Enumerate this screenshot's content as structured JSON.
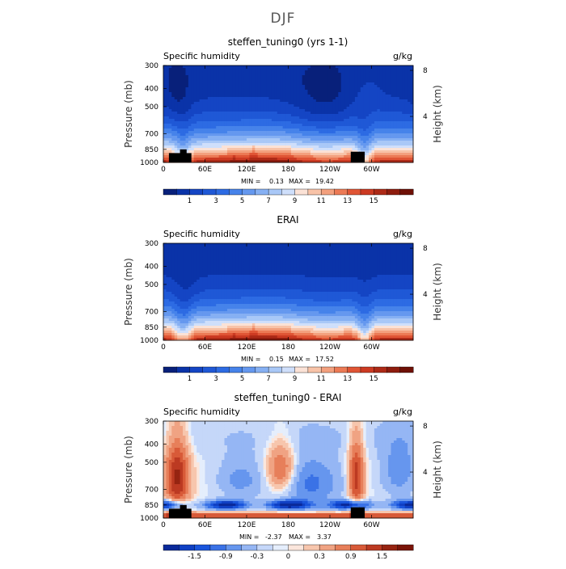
{
  "figure": {
    "title": "DJF"
  },
  "colors": {
    "absolute": [
      "#08207a",
      "#0a33a8",
      "#1445c4",
      "#1f58d6",
      "#2d6be3",
      "#4683ea",
      "#6598ef",
      "#86b0f3",
      "#a9c8f7",
      "#cfdffb",
      "#fbe2d6",
      "#f8c3a8",
      "#f3a07e",
      "#ec7a55",
      "#e05535",
      "#cc3a22",
      "#ad2a17",
      "#8e1c0e",
      "#6e1006"
    ],
    "difference": [
      "#0a2a9a",
      "#1040c4",
      "#1a55dc",
      "#3a72e6",
      "#6696ee",
      "#95b6f4",
      "#c5d7f9",
      "#e5eefc",
      "#fbe6dc",
      "#f7c6ad",
      "#f0a383",
      "#e77f5a",
      "#d85a38",
      "#bc3a22",
      "#962411",
      "#7a1408"
    ]
  },
  "chart_data": [
    {
      "type": "heatmap",
      "title": "steffen_tuning0 (yrs 1-1)",
      "left_label": "Specific humidity",
      "right_label": "g/kg",
      "ylabel": "Pressure (mb)",
      "y2label": "Height (km)",
      "x_ticks": [
        "0",
        "60E",
        "120E",
        "180",
        "120W",
        "60W"
      ],
      "x_tick_values": [
        0,
        60,
        120,
        180,
        240,
        300
      ],
      "xlim": [
        0,
        360
      ],
      "y_ticks": [
        "300",
        "400",
        "500",
        "700",
        "850",
        "1000"
      ],
      "y_tick_values": [
        300,
        400,
        500,
        700,
        850,
        1000
      ],
      "ylim": [
        1000,
        300
      ],
      "y2_ticks": [
        "8",
        "4"
      ],
      "y2_tick_values": [
        8,
        4
      ],
      "min_label": "MIN =",
      "min_value": "0.13",
      "max_label": "MAX =",
      "max_value": "19.42",
      "colorbar_labels": [
        "1",
        "3",
        "5",
        "7",
        "9",
        "11",
        "13",
        "15"
      ],
      "colorbar_levels": [
        0,
        1,
        2,
        3,
        4,
        5,
        6,
        7,
        8,
        9,
        10,
        11,
        12,
        13,
        14,
        15,
        16,
        17,
        18
      ],
      "field": "model"
    },
    {
      "type": "heatmap",
      "title": "ERAI",
      "left_label": "Specific humidity",
      "right_label": "g/kg",
      "ylabel": "Pressure (mb)",
      "y2label": "Height (km)",
      "x_ticks": [
        "0",
        "60E",
        "120E",
        "180",
        "120W",
        "60W"
      ],
      "x_tick_values": [
        0,
        60,
        120,
        180,
        240,
        300
      ],
      "xlim": [
        0,
        360
      ],
      "y_ticks": [
        "300",
        "400",
        "500",
        "700",
        "850",
        "1000"
      ],
      "y_tick_values": [
        300,
        400,
        500,
        700,
        850,
        1000
      ],
      "ylim": [
        1000,
        300
      ],
      "y2_ticks": [
        "8",
        "4"
      ],
      "y2_tick_values": [
        8,
        4
      ],
      "min_label": "MIN =",
      "min_value": "0.15",
      "max_label": "MAX =",
      "max_value": "17.52",
      "colorbar_labels": [
        "1",
        "3",
        "5",
        "7",
        "9",
        "11",
        "13",
        "15"
      ],
      "colorbar_levels": [
        0,
        1,
        2,
        3,
        4,
        5,
        6,
        7,
        8,
        9,
        10,
        11,
        12,
        13,
        14,
        15,
        16,
        17,
        18
      ],
      "field": "obs"
    },
    {
      "type": "heatmap",
      "title": "steffen_tuning0 - ERAI",
      "left_label": "Specific humidity",
      "right_label": "g/kg",
      "ylabel": "Pressure (mb)",
      "y2label": "Height (km)",
      "x_ticks": [
        "0",
        "60E",
        "120E",
        "180",
        "120W",
        "60W"
      ],
      "x_tick_values": [
        0,
        60,
        120,
        180,
        240,
        300
      ],
      "xlim": [
        0,
        360
      ],
      "y_ticks": [
        "300",
        "400",
        "500",
        "700",
        "850",
        "1000"
      ],
      "y_tick_values": [
        300,
        400,
        500,
        700,
        850,
        1000
      ],
      "ylim": [
        1000,
        300
      ],
      "y2_ticks": [
        "8",
        "4"
      ],
      "y2_tick_values": [
        8,
        4
      ],
      "min_label": "MIN =",
      "min_value": "-2.37",
      "max_label": "MAX =",
      "max_value": "3.37",
      "colorbar_labels": [
        "-1.5",
        "-0.9",
        "-0.3",
        "0",
        "0.3",
        "0.9",
        "1.5"
      ],
      "colorbar_levels": [
        -1.8,
        -1.5,
        -1.2,
        -0.9,
        -0.6,
        -0.3,
        -0.1,
        0,
        0.1,
        0.3,
        0.6,
        0.9,
        1.2,
        1.5,
        1.8
      ],
      "field": "diff"
    }
  ]
}
